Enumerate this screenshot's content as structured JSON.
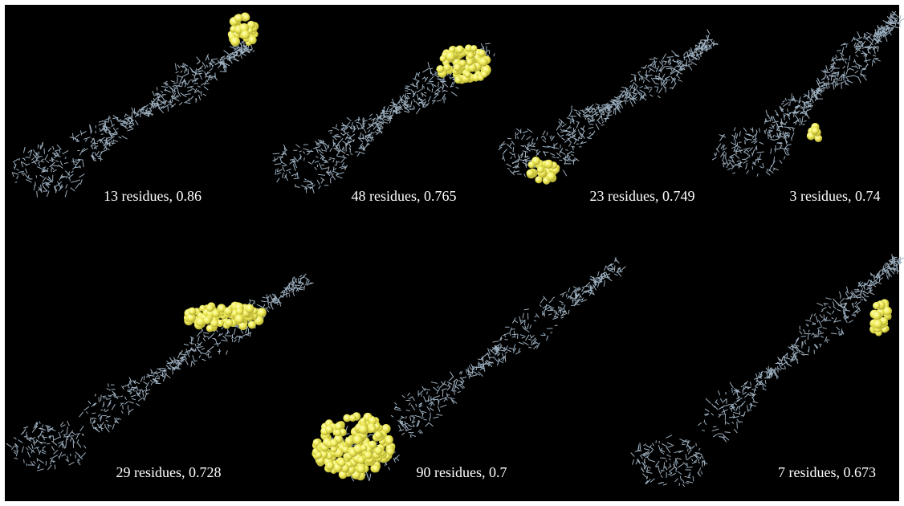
{
  "panels": [
    {
      "label": "13 residues, 0.86"
    },
    {
      "label": "48 residues, 0.765"
    },
    {
      "label": "23 residues, 0.749"
    },
    {
      "label": "3 residues, 0.74"
    },
    {
      "label": "29 residues, 0.728"
    },
    {
      "label": "90 residues, 0.7"
    },
    {
      "label": "7 residues, 0.673"
    }
  ]
}
